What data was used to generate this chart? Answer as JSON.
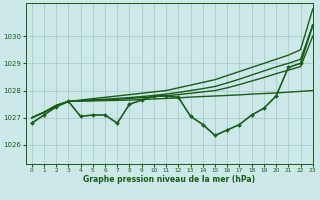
{
  "title": "Graphe pression niveau de la mer (hPa)",
  "background_color": "#cce8e8",
  "grid_color": "#aacccc",
  "line_color": "#1a5c1a",
  "xlim": [
    -0.5,
    23
  ],
  "ylim": [
    1025.3,
    1031.2
  ],
  "xticks": [
    0,
    1,
    2,
    3,
    4,
    5,
    6,
    7,
    8,
    9,
    10,
    11,
    12,
    13,
    14,
    15,
    16,
    17,
    18,
    19,
    20,
    21,
    22,
    23
  ],
  "yticks": [
    1026,
    1027,
    1028,
    1029,
    1030
  ],
  "series": [
    {
      "x": [
        0,
        1,
        2,
        3,
        4,
        5,
        6,
        7,
        8,
        9,
        10,
        11,
        12,
        13,
        14,
        15,
        16,
        17,
        18,
        19,
        20,
        21,
        22,
        23
      ],
      "y": [
        1027.0,
        1027.2,
        1027.45,
        1027.6,
        1027.65,
        1027.7,
        1027.75,
        1027.8,
        1027.85,
        1027.9,
        1027.95,
        1028.0,
        1028.1,
        1028.2,
        1028.3,
        1028.4,
        1028.55,
        1028.7,
        1028.85,
        1029.0,
        1029.15,
        1029.3,
        1029.5,
        1031.0
      ],
      "marker": null,
      "linewidth": 1.0
    },
    {
      "x": [
        0,
        1,
        2,
        3,
        4,
        5,
        6,
        7,
        8,
        9,
        10,
        11,
        12,
        13,
        14,
        15,
        16,
        17,
        18,
        19,
        20,
        21,
        22,
        23
      ],
      "y": [
        1027.0,
        1027.2,
        1027.45,
        1027.6,
        1027.63,
        1027.66,
        1027.68,
        1027.71,
        1027.74,
        1027.78,
        1027.82,
        1027.87,
        1027.93,
        1028.0,
        1028.07,
        1028.15,
        1028.28,
        1028.42,
        1028.57,
        1028.72,
        1028.87,
        1029.0,
        1029.15,
        1030.4
      ],
      "marker": null,
      "linewidth": 1.0
    },
    {
      "x": [
        0,
        1,
        2,
        3,
        4,
        5,
        6,
        7,
        8,
        9,
        10,
        11,
        12,
        13,
        14,
        15,
        16,
        17,
        18,
        19,
        20,
        21,
        22,
        23
      ],
      "y": [
        1027.0,
        1027.2,
        1027.45,
        1027.6,
        1027.62,
        1027.64,
        1027.66,
        1027.68,
        1027.71,
        1027.74,
        1027.77,
        1027.81,
        1027.85,
        1027.9,
        1027.95,
        1028.0,
        1028.1,
        1028.22,
        1028.35,
        1028.48,
        1028.62,
        1028.75,
        1028.88,
        1030.0
      ],
      "marker": null,
      "linewidth": 1.0
    },
    {
      "x": [
        0,
        1,
        2,
        3,
        4,
        5,
        6,
        7,
        8,
        9,
        10,
        11,
        12,
        13,
        14,
        15,
        16,
        17,
        18,
        19,
        20,
        21,
        22,
        23
      ],
      "y": [
        1027.0,
        1027.2,
        1027.45,
        1027.6,
        1027.61,
        1027.62,
        1027.63,
        1027.64,
        1027.65,
        1027.67,
        1027.69,
        1027.71,
        1027.73,
        1027.76,
        1027.78,
        1027.8,
        1027.82,
        1027.84,
        1027.87,
        1027.89,
        1027.91,
        1027.94,
        1027.97,
        1028.0
      ],
      "marker": null,
      "linewidth": 1.0
    },
    {
      "x": [
        0,
        1,
        2,
        3,
        4,
        5,
        6,
        7,
        8,
        9,
        10,
        11,
        12,
        13,
        14,
        15,
        16,
        17,
        18,
        19,
        20,
        21,
        22,
        23
      ],
      "y": [
        1026.8,
        1027.1,
        1027.4,
        1027.6,
        1027.05,
        1027.1,
        1027.1,
        1026.8,
        1027.5,
        1027.65,
        1027.8,
        1027.8,
        1027.75,
        1027.05,
        1026.75,
        1026.35,
        1026.55,
        1026.75,
        1027.1,
        1027.35,
        1027.8,
        1028.85,
        1029.0,
        1030.4
      ],
      "marker": "D",
      "markersize": 2.0,
      "linewidth": 1.2
    }
  ]
}
